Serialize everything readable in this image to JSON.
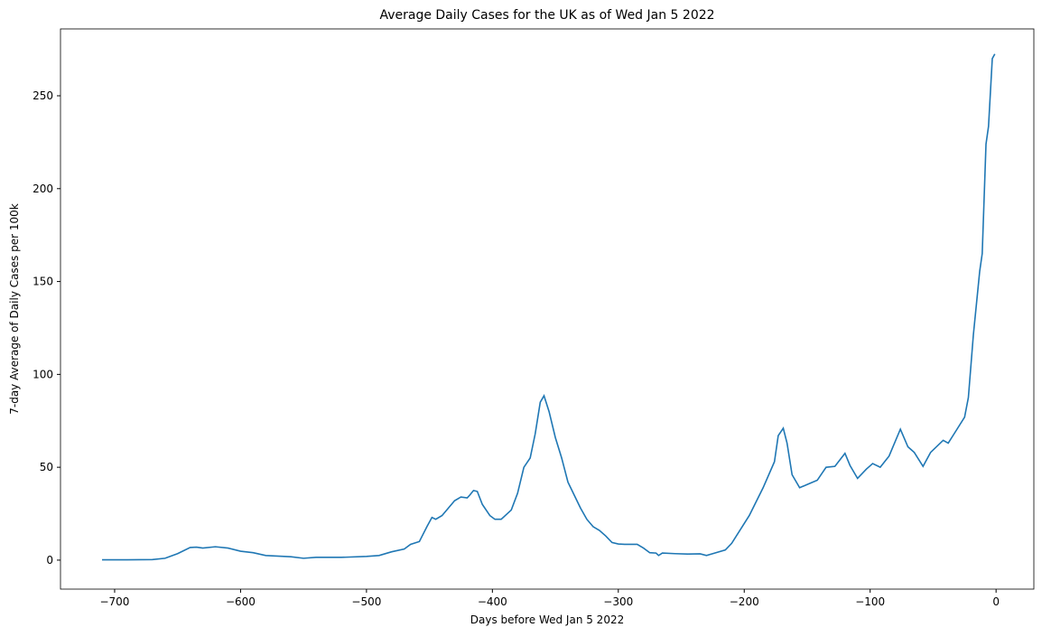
{
  "chart_data": {
    "type": "line",
    "title": "Average Daily Cases for the UK as of Wed Jan 5 2022",
    "xlabel": "Days before Wed Jan 5 2022",
    "ylabel": "7-day Average of Daily Cases per 100k",
    "x": [
      -710,
      -690,
      -670,
      -660,
      -650,
      -640,
      -635,
      -630,
      -620,
      -610,
      -600,
      -590,
      -580,
      -560,
      -550,
      -540,
      -520,
      -500,
      -490,
      -480,
      -470,
      -465,
      -458,
      -452,
      -448,
      -445,
      -440,
      -435,
      -430,
      -425,
      -420,
      -418,
      -415,
      -412,
      -408,
      -402,
      -398,
      -393,
      -385,
      -380,
      -375,
      -370,
      -366,
      -362,
      -359,
      -355,
      -350,
      -345,
      -340,
      -335,
      -330,
      -325,
      -320,
      -315,
      -310,
      -305,
      -300,
      -295,
      -285,
      -280,
      -275,
      -270,
      -268,
      -265,
      -255,
      -245,
      -235,
      -230,
      -225,
      -215,
      -210,
      -196,
      -185,
      -176,
      -173,
      -169,
      -166,
      -162,
      -156,
      -149,
      -142,
      -135,
      -128,
      -120,
      -116,
      -110,
      -103,
      -98,
      -92,
      -85,
      -76,
      -70,
      -65,
      -58,
      -52,
      -42,
      -38,
      -31,
      -25,
      -22,
      -18,
      -13,
      -11,
      -8,
      -6,
      -3,
      -1
    ],
    "series": [
      {
        "name": "UK",
        "color": "#1f77b4",
        "values": [
          0.2,
          0.2,
          0.3,
          1,
          3.5,
          6.8,
          7,
          6.5,
          7.2,
          6.5,
          4.8,
          4,
          2.5,
          1.8,
          1,
          1.5,
          1.5,
          2,
          2.5,
          4.5,
          6,
          8.5,
          10,
          18,
          23,
          22,
          24,
          28,
          32,
          34,
          33.5,
          35,
          37.5,
          37,
          30,
          24,
          22,
          22,
          27,
          36,
          50,
          55,
          68,
          85,
          88.5,
          80,
          66,
          55,
          42,
          35,
          28,
          22,
          18,
          16,
          13,
          9.5,
          8.7,
          8.5,
          8.5,
          6.5,
          4,
          3.8,
          2.5,
          3.8,
          3.5,
          3.3,
          3.4,
          2.5,
          3.5,
          5.5,
          9,
          24,
          39,
          53,
          67,
          71,
          63,
          46,
          39,
          41,
          43,
          50,
          50.5,
          57.5,
          51,
          44,
          49,
          52,
          50,
          56,
          70.5,
          61,
          58,
          50.5,
          58,
          64.5,
          63,
          70.5,
          77,
          87.5,
          121.5,
          155.5,
          165,
          224,
          233.5,
          270,
          272.5
        ]
      }
    ],
    "xlim": [
      -743,
      30
    ],
    "ylim": [
      -15.6,
      286
    ],
    "xticks": [
      {
        "value": -700,
        "label": "−700"
      },
      {
        "value": -600,
        "label": "−600"
      },
      {
        "value": -500,
        "label": "−500"
      },
      {
        "value": -400,
        "label": "−400"
      },
      {
        "value": -300,
        "label": "−300"
      },
      {
        "value": -200,
        "label": "−200"
      },
      {
        "value": -100,
        "label": "−100"
      },
      0
    ],
    "yticks": [
      0,
      50,
      100,
      150,
      200,
      250
    ]
  }
}
